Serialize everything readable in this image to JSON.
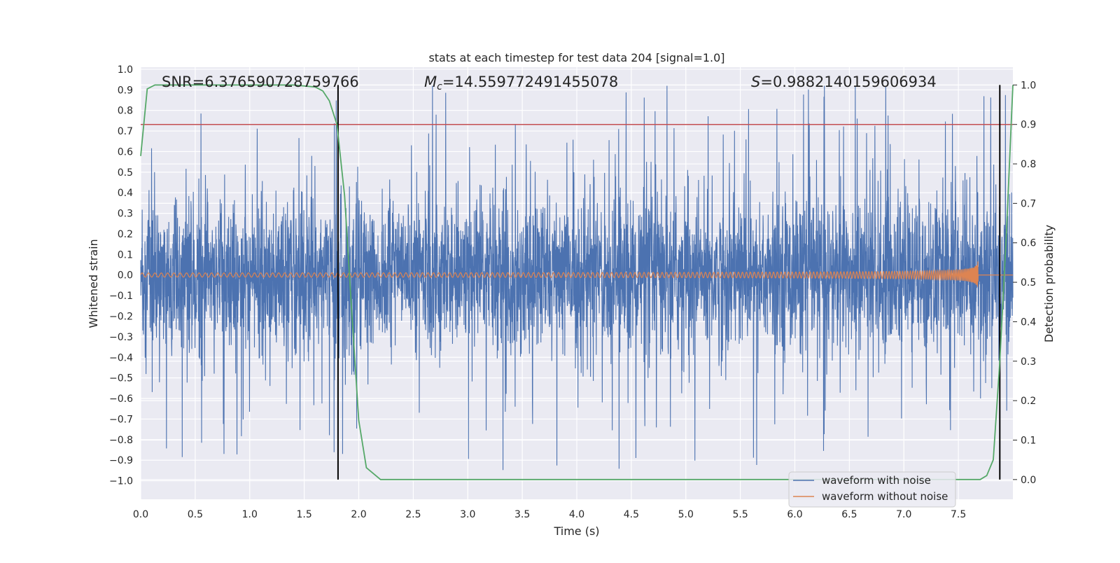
{
  "chart_data": {
    "type": "line",
    "title": "stats at each timestep for test data 204 [signal=1.0]",
    "xlabel": "Time (s)",
    "ylabel": "Whitened strain",
    "y2label": "Detection probability",
    "xlim": [
      0.0,
      8.0
    ],
    "ylim": [
      -1.09,
      1.01
    ],
    "y2lim": [
      -0.05,
      1.045
    ],
    "x_ticks": [
      "0.0",
      "0.5",
      "1.0",
      "1.5",
      "2.0",
      "2.5",
      "3.0",
      "3.5",
      "4.0",
      "4.5",
      "5.0",
      "5.5",
      "6.0",
      "6.5",
      "7.0",
      "7.5"
    ],
    "y_ticks": [
      "1.0",
      "0.9",
      "0.8",
      "0.7",
      "0.6",
      "0.5",
      "0.4",
      "0.3",
      "0.2",
      "0.1",
      "0.0",
      "−0.1",
      "−0.2",
      "−0.3",
      "−0.4",
      "−0.5",
      "−0.6",
      "−0.7",
      "−0.8",
      "−0.9",
      "−1.0"
    ],
    "y2_ticks": [
      "1.0",
      "0.9",
      "0.8",
      "0.7",
      "0.6",
      "0.5",
      "0.4",
      "0.3",
      "0.2",
      "0.1",
      "0.0"
    ],
    "grid": true,
    "legend_position": "lower-right",
    "annotations": {
      "snr": "SNR=6.376590728759766",
      "mc_symbol": "M",
      "mc_sub": "c",
      "mc_value": "=14.559772491455078",
      "s_symbol": "S",
      "s_value": "=0.9882140159606934"
    },
    "threshold": {
      "axis": "y2",
      "value": 0.9,
      "color": "#c44e52"
    },
    "vertical_lines": [
      1.81,
      7.88
    ],
    "series": [
      {
        "name": "waveform with noise",
        "color": "#4c72b0",
        "axis": "y",
        "description_of_envelope": "noise",
        "amplitude_typical": 0.35,
        "amplitude_peak": 1.0
      },
      {
        "name": "waveform without noise",
        "color": "#dd8452",
        "axis": "y",
        "chirp_start_amplitude": 0.01,
        "chirp_peak_time": 7.68,
        "chirp_peak_amplitude": 0.25,
        "chirp_min": -0.25
      },
      {
        "color": "#55a868",
        "axis": "y2",
        "x": [
          0.0,
          0.06,
          0.13,
          0.3,
          0.6,
          1.0,
          1.4,
          1.6,
          1.67,
          1.73,
          1.8,
          1.87,
          1.93,
          2.0,
          2.07,
          2.2,
          3.0,
          4.0,
          5.0,
          6.0,
          7.0,
          7.5,
          7.7,
          7.76,
          7.82,
          7.88,
          7.94,
          8.0
        ],
        "y": [
          0.82,
          0.99,
          1.0,
          1.0,
          1.0,
          1.0,
          1.0,
          0.995,
          0.985,
          0.96,
          0.9,
          0.72,
          0.45,
          0.15,
          0.03,
          0.0,
          0.0,
          0.0,
          0.0,
          0.0,
          0.0,
          0.0,
          0.0,
          0.01,
          0.05,
          0.3,
          0.62,
          1.0
        ]
      }
    ]
  }
}
